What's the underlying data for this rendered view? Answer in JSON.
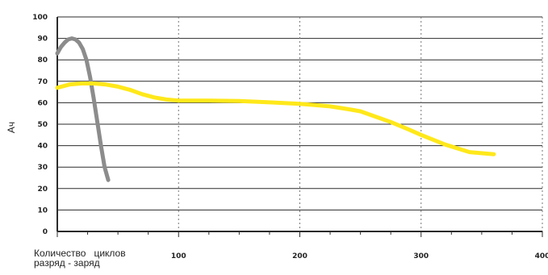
{
  "chart_data": {
    "type": "line",
    "title": "",
    "ylabel": "Ач",
    "xlabel_lines": [
      "Количество   циклов",
      "разряд - заряд"
    ],
    "xlim": [
      0,
      400
    ],
    "ylim": [
      0,
      100
    ],
    "xticks": [
      100,
      200,
      300,
      400
    ],
    "yticks": [
      0,
      10,
      20,
      30,
      40,
      50,
      60,
      70,
      80,
      90,
      100
    ],
    "grid": {
      "horizontal": "solid",
      "vertical": "dotted"
    },
    "series": [
      {
        "color": "#8c8c8c",
        "x": [
          0,
          3,
          6,
          9,
          12,
          15,
          18,
          21,
          24,
          27,
          30,
          33,
          36,
          39,
          42
        ],
        "y": [
          83,
          86,
          88,
          89.5,
          90,
          89.5,
          88,
          85,
          80,
          72,
          62,
          51,
          40,
          30,
          24
        ]
      },
      {
        "color": "#ffe81a",
        "x": [
          0,
          10,
          20,
          30,
          40,
          50,
          60,
          70,
          80,
          90,
          100,
          125,
          150,
          175,
          200,
          225,
          240,
          250,
          260,
          275,
          290,
          300,
          320,
          340,
          360
        ],
        "y": [
          67,
          68.5,
          69,
          69,
          68.5,
          67.5,
          66,
          64,
          62.5,
          61.5,
          61,
          61,
          60.8,
          60.2,
          59.5,
          58.3,
          57,
          56,
          54,
          51,
          47.5,
          45,
          40.5,
          37,
          36
        ]
      }
    ]
  }
}
